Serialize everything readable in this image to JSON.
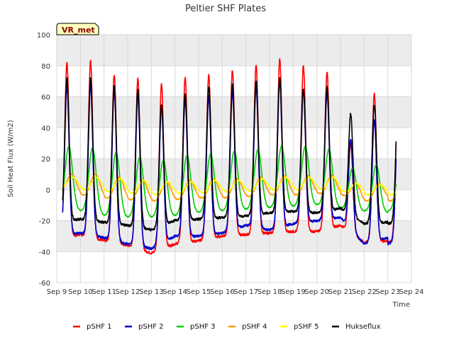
{
  "chart_data": {
    "type": "line",
    "title": "Peltier SHF Plates",
    "xlabel": "Time",
    "ylabel": "Soil Heat Flux (W/m2)",
    "badge": "VR_met",
    "ylim": [
      -60,
      100
    ],
    "xlim": [
      0,
      15
    ],
    "yticks": [
      -60,
      -40,
      -20,
      0,
      20,
      40,
      60,
      80,
      100
    ],
    "xticks": [
      {
        "pos": 0,
        "label": "Sep 9"
      },
      {
        "pos": 1,
        "label": "Sep 10"
      },
      {
        "pos": 2,
        "label": "Sep 11"
      },
      {
        "pos": 3,
        "label": "Sep 12"
      },
      {
        "pos": 4,
        "label": "Sep 13"
      },
      {
        "pos": 5,
        "label": "Sep 14"
      },
      {
        "pos": 6,
        "label": "Sep 15"
      },
      {
        "pos": 7,
        "label": "Sep 16"
      },
      {
        "pos": 8,
        "label": "Sep 17"
      },
      {
        "pos": 9,
        "label": "Sep 18"
      },
      {
        "pos": 10,
        "label": "Sep 19"
      },
      {
        "pos": 11,
        "label": "Sep 20"
      },
      {
        "pos": 12,
        "label": "Sep 21"
      },
      {
        "pos": 13,
        "label": "Sep 22"
      },
      {
        "pos": 14,
        "label": "Sep 23"
      },
      {
        "pos": 15,
        "label": "Sep 24"
      }
    ],
    "shaded_bands": [
      [
        -40,
        -20
      ],
      [
        0,
        20
      ],
      [
        40,
        60
      ],
      [
        80,
        100
      ]
    ],
    "grid": true,
    "legend_position": "bottom",
    "days_start": 0.25,
    "day_peak_offset": 0.43,
    "series": [
      {
        "name": "pSHF 1",
        "color": "#ff0000",
        "peaks": [
          82,
          83,
          74,
          72,
          68,
          72,
          74,
          77,
          80,
          84,
          80,
          76,
          30,
          62
        ],
        "troughs": [
          -32,
          -29,
          -33,
          -36,
          -41,
          -35,
          -33,
          -30,
          -29,
          -28,
          -27,
          -27,
          -23,
          -34,
          -33
        ],
        "width": 0.22,
        "lag": 0
      },
      {
        "name": "pSHF 2",
        "color": "#0000cc",
        "peaks": [
          67,
          67,
          64,
          61,
          53,
          58,
          60,
          63,
          66,
          70,
          64,
          62,
          32,
          45
        ],
        "troughs": [
          -29,
          -28,
          -31,
          -35,
          -38,
          -30,
          -30,
          -28,
          -23,
          -26,
          -22,
          -20,
          -18,
          -35,
          -31
        ],
        "width": 0.22,
        "lag": 0
      },
      {
        "name": "pSHF 3",
        "color": "#00cc00",
        "peaks": [
          28,
          27,
          24,
          21,
          19,
          22,
          23,
          25,
          26,
          28,
          28,
          26,
          14,
          16
        ],
        "troughs": [
          -11,
          -14,
          -17,
          -18,
          -18,
          -17,
          -15,
          -14,
          -13,
          -12,
          -11,
          -10,
          -12,
          -14,
          -15
        ],
        "width": 0.38,
        "lag": 0.08
      },
      {
        "name": "pSHF 4",
        "color": "#ff9900",
        "peaks": [
          10,
          10,
          8,
          6,
          5,
          6,
          7,
          7,
          8,
          9,
          9,
          9,
          4,
          4
        ],
        "troughs": [
          0,
          -5,
          -7,
          -8,
          -9,
          -8,
          -7,
          -7,
          -6,
          -5,
          -5,
          -4,
          -4,
          -9,
          -6
        ],
        "width": 0.5,
        "lag": 0.2
      },
      {
        "name": "pSHF 5",
        "color": "#ffff00",
        "peaks": [
          8,
          8,
          7,
          6,
          5,
          5,
          6,
          6,
          7,
          8,
          8,
          8,
          4,
          3
        ],
        "troughs": [
          2,
          -2,
          -3,
          -4,
          -5,
          -4,
          -4,
          -3,
          -3,
          -2,
          -2,
          -1,
          -2,
          -5,
          -3
        ],
        "width": 0.55,
        "lag": 0.25
      },
      {
        "name": "Hukseflux",
        "color": "#000000",
        "peaks": [
          72,
          72,
          67,
          65,
          55,
          62,
          66,
          68,
          70,
          72,
          65,
          66,
          49,
          55
        ],
        "troughs": [
          -21,
          -19,
          -21,
          -23,
          -26,
          -20,
          -19,
          -18,
          -17,
          -15,
          -14,
          -15,
          -12,
          -22,
          -21
        ],
        "width": 0.22,
        "lag": 0
      }
    ]
  }
}
